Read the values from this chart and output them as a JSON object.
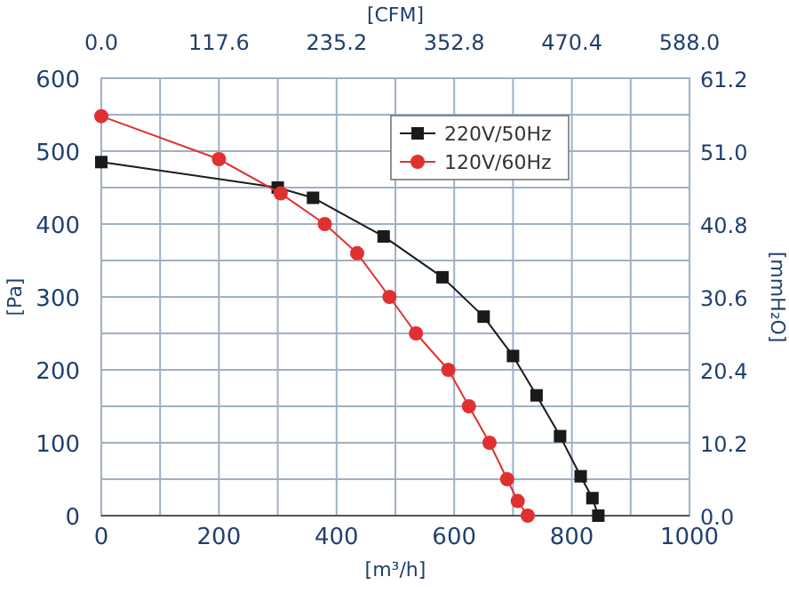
{
  "chart_data": {
    "type": "line",
    "xlabel": "[m³/h]",
    "ylabel": "[Pa]",
    "y2label": "[mmH₂O]",
    "x2label": "[CFM]",
    "xlim": [
      0,
      1000
    ],
    "xticks": [
      0,
      {
        "value": 100,
        "label": null
      },
      200,
      {
        "value": 300,
        "label": null
      },
      400,
      {
        "value": 500,
        "label": null
      },
      600,
      {
        "value": 700,
        "label": null
      },
      800,
      {
        "value": 900,
        "label": null
      },
      1000
    ],
    "ylim": [
      0,
      600
    ],
    "yticks": [
      0,
      {
        "value": 50,
        "label": null
      },
      100,
      {
        "value": 150,
        "label": null
      },
      200,
      {
        "value": 250,
        "label": null
      },
      300,
      {
        "value": 350,
        "label": null
      },
      400,
      {
        "value": 450,
        "label": null
      },
      500,
      {
        "value": 550,
        "label": null
      },
      600
    ],
    "x2lim": [
      0,
      588
    ],
    "x2ticks": [
      {
        "value": 0,
        "label": "0.0"
      },
      {
        "value": 117.6,
        "label": "117.6"
      },
      {
        "value": 235.2,
        "label": "235.2"
      },
      {
        "value": 352.8,
        "label": "352.8"
      },
      {
        "value": 470.4,
        "label": "470.4"
      },
      {
        "value": 588,
        "label": "588.0"
      }
    ],
    "y2lim": [
      0,
      61.2
    ],
    "y2ticks": [
      {
        "value": 0,
        "label": "0.0"
      },
      {
        "value": 10.2,
        "label": "10.2"
      },
      {
        "value": 20.4,
        "label": "20.4"
      },
      {
        "value": 30.6,
        "label": "30.6"
      },
      {
        "value": 40.8,
        "label": "40.8"
      },
      {
        "value": 51,
        "label": "51.0"
      },
      {
        "value": 61.2,
        "label": "61.2"
      }
    ],
    "grid": true,
    "legend": "top right",
    "line_style": "solid",
    "series": [
      {
        "name": "220V/50Hz",
        "color": "#1a1a1a",
        "marker": "square",
        "x": [
          0,
          300,
          360,
          480,
          580,
          650,
          700,
          740,
          780,
          815,
          835,
          845
        ],
        "values": [
          485,
          450,
          436,
          383,
          327,
          273,
          219,
          165,
          109,
          54,
          24,
          0
        ]
      },
      {
        "name": "120V/60Hz",
        "color": "#e03030",
        "marker": "circle",
        "x": [
          0,
          200,
          305,
          380,
          435,
          490,
          535,
          590,
          625,
          660,
          690,
          708,
          725
        ],
        "values": [
          548,
          489,
          442,
          400,
          360,
          300,
          250,
          200,
          150,
          100,
          50,
          20,
          0
        ]
      }
    ]
  }
}
